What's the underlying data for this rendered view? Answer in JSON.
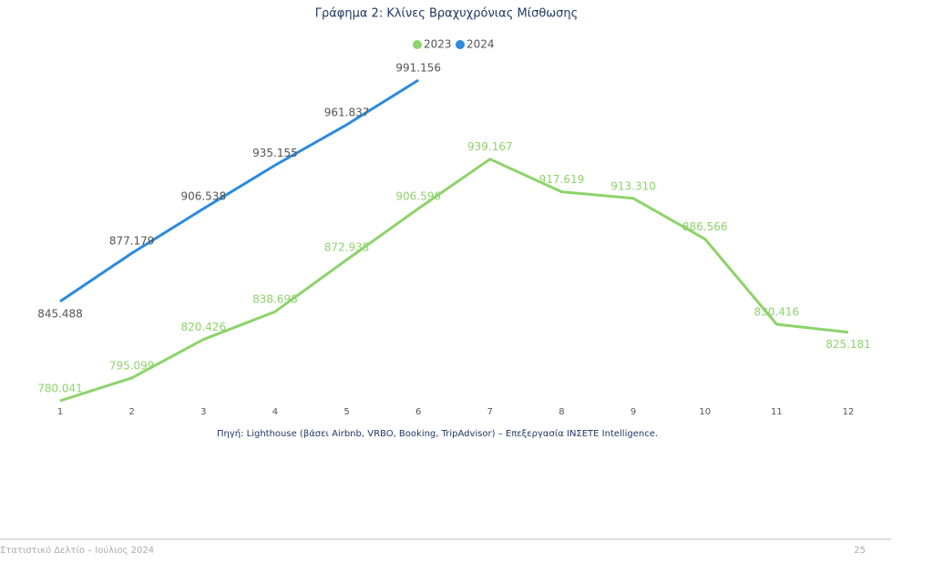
{
  "chart_data": {
    "type": "line",
    "title": "Γράφημα 2: Κλίνες Βραχυχρόνιας Μίσθωσης",
    "categories": [
      "1",
      "2",
      "3",
      "4",
      "5",
      "6",
      "7",
      "8",
      "9",
      "10",
      "11",
      "12"
    ],
    "series": [
      {
        "name": "2023",
        "color": "#8dd36b",
        "values": [
          780041,
          795099,
          820426,
          838698,
          872935,
          906596,
          939167,
          917619,
          913310,
          886566,
          830416,
          825181
        ],
        "value_labels": [
          "780.041",
          "795.099",
          "820.426",
          "838.698",
          "872.935",
          "906.596",
          "939.167",
          "917.619",
          "913.310",
          "886.566",
          "830.416",
          "825.181"
        ]
      },
      {
        "name": "2024",
        "color": "#2a8ae0",
        "values": [
          845488,
          877179,
          906538,
          935155,
          961837,
          991156,
          null,
          null,
          null,
          null,
          null,
          null
        ],
        "value_labels": [
          "845.488",
          "877.179",
          "906.538",
          "935.155",
          "961.837",
          "991.156",
          null,
          null,
          null,
          null,
          null,
          null
        ]
      }
    ],
    "legend": "top",
    "note": "Πηγή: Lighthouse (βάσει Airbnb, VRBO, Booking, TripAdvisor) – Επεξεργασία ΙΝΣΕΤΕ Intelligence."
  },
  "footer": {
    "text": "Στατιστικό Δελτίο – Ιούλιος 2024",
    "page": "25"
  }
}
